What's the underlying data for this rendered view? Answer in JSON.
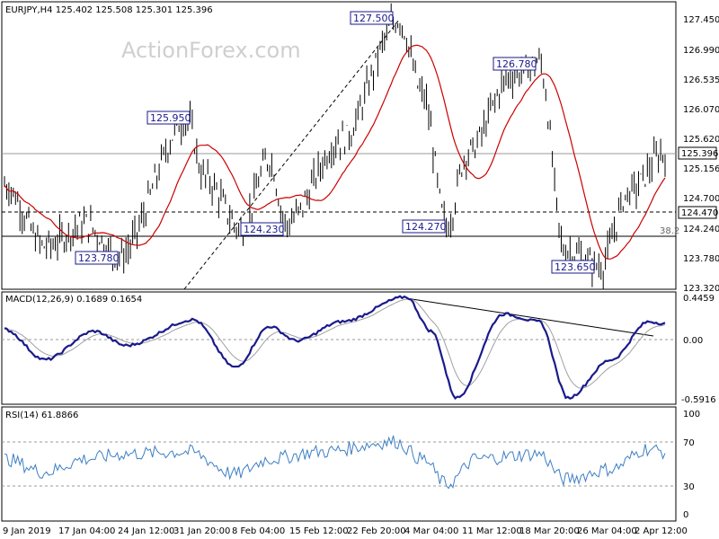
{
  "watermark": "ActionForex.com",
  "price_panel": {
    "header": "EURJPY,H4  125.402 125.508 125.301 125.396",
    "y_ticks": [
      "127.450",
      "126.990",
      "126.535",
      "126.070",
      "125.620",
      "125.156",
      "124.700",
      "124.240",
      "123.780",
      "123.320"
    ],
    "current_price_label": "125.396",
    "support_label": "124.470",
    "fib_label": "38.2",
    "annotations": [
      "127.500",
      "125.950",
      "126.780",
      "124.230",
      "124.270",
      "123.780",
      "123.650"
    ],
    "colors": {
      "candles": "#000000",
      "ma": "#cc0000",
      "label_border": "#1a1a8c",
      "label_text": "#1a1a8c"
    }
  },
  "macd_panel": {
    "header": "MACD(12,26,9) 0.1689 0.1654",
    "y_ticks": [
      "0.4459",
      "0.00",
      "-0.5916"
    ],
    "colors": {
      "macd": "#1a1a8c",
      "signal": "#a0a0a0"
    }
  },
  "rsi_panel": {
    "header": "RSI(14) 61.8866",
    "y_ticks": [
      "100",
      "70",
      "30",
      "0"
    ],
    "colors": {
      "rsi": "#3d7fc4"
    }
  },
  "x_ticks": [
    "9 Jan 2019",
    "17 Jan 04:00",
    "24 Jan 12:00",
    "31 Jan 20:00",
    "8 Feb 04:00",
    "15 Feb 12:00",
    "22 Feb 20:00",
    "4 Mar 04:00",
    "11 Mar 12:00",
    "18 Mar 20:00",
    "26 Mar 04:00",
    "2 Apr 12:00"
  ],
  "chart_data": {
    "type": "line",
    "title": "EURJPY,H4",
    "x": [
      "9 Jan 2019",
      "17 Jan 04:00",
      "24 Jan 12:00",
      "31 Jan 20:00",
      "8 Feb 04:00",
      "15 Feb 12:00",
      "22 Feb 20:00",
      "4 Mar 04:00",
      "11 Mar 12:00",
      "18 Mar 20:00",
      "26 Mar 04:00",
      "2 Apr 12:00"
    ],
    "ylim": [
      123.32,
      127.75
    ],
    "series": [
      {
        "name": "EURJPY",
        "values": [
          124.9,
          124.3,
          124.5,
          125.5,
          124.3,
          124.9,
          125.4,
          127.4,
          124.8,
          126.6,
          124.2,
          125.2
        ]
      }
    ],
    "key_points": [
      {
        "label": "127.500",
        "value": 127.5
      },
      {
        "label": "126.780",
        "value": 126.78
      },
      {
        "label": "125.950",
        "value": 125.95
      },
      {
        "label": "124.270",
        "value": 124.27
      },
      {
        "label": "124.230",
        "value": 124.23
      },
      {
        "label": "123.780",
        "value": 123.78
      },
      {
        "label": "123.650",
        "value": 123.65
      }
    ],
    "horizontal_levels": [
      {
        "label": "125.396",
        "value": 125.396
      },
      {
        "label": "124.470",
        "value": 124.47
      },
      {
        "label": "38.2",
        "value": 124.14
      }
    ],
    "macd": {
      "name": "MACD(12,26,9)",
      "ylim": [
        -0.5916,
        0.4459
      ],
      "values": [
        0.1,
        -0.22,
        0.05,
        0.2,
        -0.3,
        0.1,
        0.2,
        0.45,
        -0.5,
        0.26,
        -0.55,
        0.17
      ]
    },
    "rsi": {
      "name": "RSI(14)",
      "ylim": [
        0,
        100
      ],
      "levels": [
        30,
        70
      ],
      "values": [
        55,
        45,
        58,
        60,
        40,
        60,
        65,
        72,
        35,
        60,
        32,
        62
      ]
    }
  }
}
